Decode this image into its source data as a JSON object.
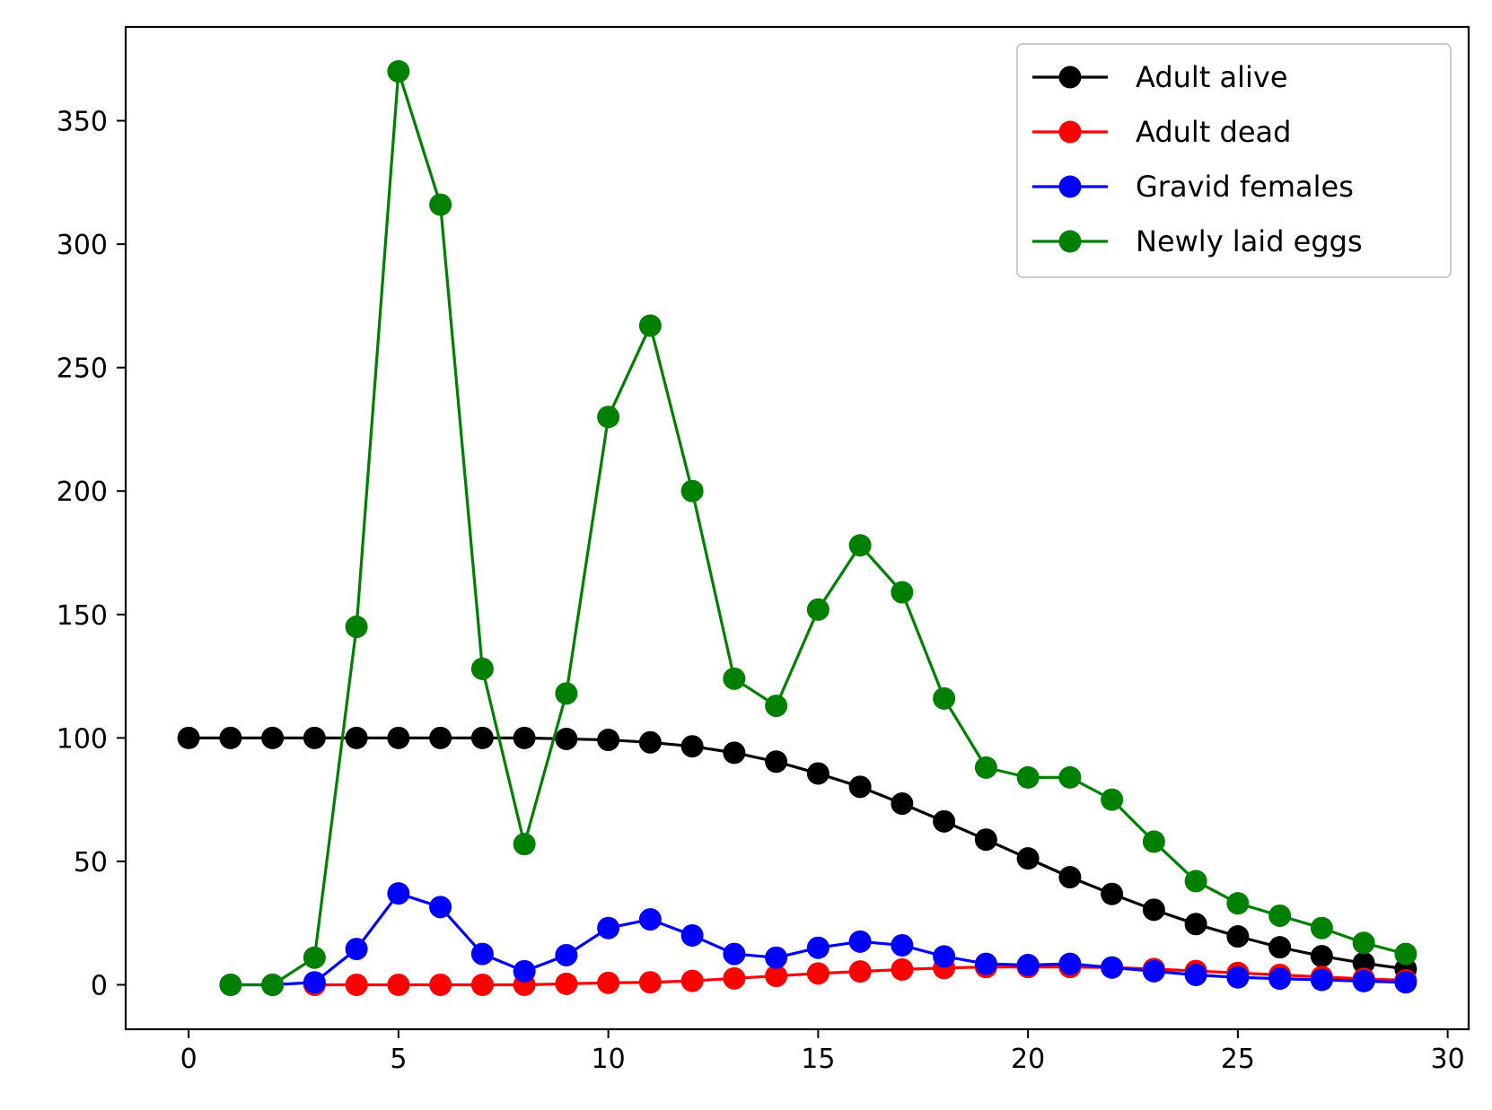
{
  "chart_data": {
    "type": "line",
    "title": "",
    "xlabel": "",
    "ylabel": "",
    "xlim": [
      -1.5,
      30.5
    ],
    "ylim": [
      -18,
      388
    ],
    "xticks": [
      0,
      5,
      10,
      15,
      20,
      25,
      30
    ],
    "yticks": [
      0,
      50,
      100,
      150,
      200,
      250,
      300,
      350
    ],
    "grid": false,
    "legend_position": "top-right",
    "series": [
      {
        "name": "Adult alive",
        "color": "#000000",
        "x": [
          0,
          1,
          2,
          3,
          4,
          5,
          6,
          7,
          8,
          9,
          10,
          11,
          12,
          13,
          14,
          15,
          16,
          17,
          18,
          19,
          20,
          21,
          22,
          23,
          24,
          25,
          26,
          27,
          28,
          29
        ],
        "values": [
          100,
          100,
          100,
          100,
          100,
          100,
          100,
          100,
          100,
          99.6,
          99.2,
          98.2,
          96.6,
          94,
          90.4,
          85.6,
          80.2,
          73.4,
          66.2,
          58.8,
          51.2,
          43.6,
          36.8,
          30.4,
          24.6,
          19.6,
          15.2,
          11.6,
          8.8,
          6.4
        ]
      },
      {
        "name": "Adult dead",
        "color": "#ff0000",
        "x": [
          3,
          4,
          5,
          6,
          7,
          8,
          9,
          10,
          11,
          12,
          13,
          14,
          15,
          16,
          17,
          18,
          19,
          20,
          21,
          22,
          23,
          24,
          25,
          26,
          27,
          28,
          29
        ],
        "values": [
          0,
          0,
          0,
          0,
          0,
          0,
          0.4,
          0.8,
          1,
          1.6,
          2.6,
          3.6,
          4.6,
          5.4,
          6.2,
          6.8,
          7.2,
          7.2,
          7.2,
          7,
          6.4,
          5.6,
          4.8,
          4,
          3.2,
          2.4,
          1.8
        ]
      },
      {
        "name": "Gravid females",
        "color": "#0000ff",
        "x": [
          1,
          2,
          3,
          4,
          5,
          6,
          7,
          8,
          9,
          10,
          11,
          12,
          13,
          14,
          15,
          16,
          17,
          18,
          19,
          20,
          21,
          22,
          23,
          24,
          25,
          26,
          27,
          28,
          29
        ],
        "values": [
          0,
          0,
          1,
          14.5,
          37,
          31.5,
          12.5,
          5.5,
          12,
          23,
          26.5,
          20,
          12.5,
          11,
          15,
          17.5,
          16,
          11.5,
          8.5,
          8,
          8.5,
          7,
          5.5,
          4,
          3,
          2.5,
          2,
          1.5,
          1
        ]
      },
      {
        "name": "Newly laid eggs",
        "color": "#008000",
        "x": [
          1,
          2,
          3,
          4,
          5,
          6,
          7,
          8,
          9,
          10,
          11,
          12,
          13,
          14,
          15,
          16,
          17,
          18,
          19,
          20,
          21,
          22,
          23,
          24,
          25,
          26,
          27,
          28,
          29
        ],
        "values": [
          0,
          0,
          11,
          145,
          370,
          316,
          128,
          57,
          118,
          230,
          267,
          200,
          124,
          113,
          152,
          178,
          159,
          116,
          88,
          84,
          84,
          75,
          58,
          42,
          33,
          28,
          23,
          17,
          12.5
        ]
      }
    ]
  }
}
